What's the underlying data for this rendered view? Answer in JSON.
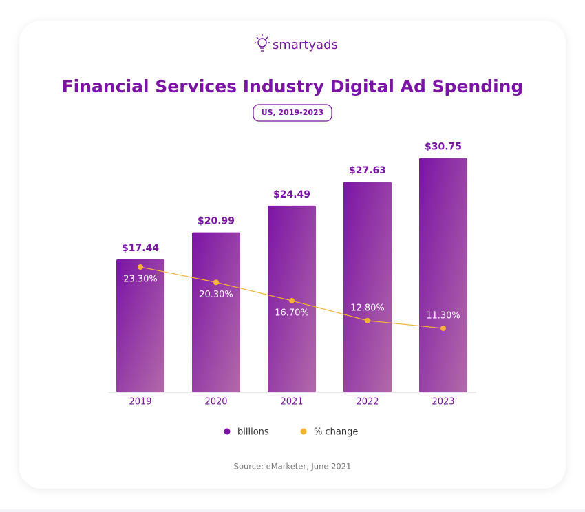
{
  "brand": "smartyads",
  "chart_data": {
    "type": "bar",
    "title": "Financial Services Industry Digital Ad Spending",
    "subtitle": "US, 2019-2023",
    "categories": [
      "2019",
      "2020",
      "2021",
      "2022",
      "2023"
    ],
    "series": [
      {
        "name": "billions",
        "type": "bar",
        "color": "#7b14a5",
        "color_end": "#b26aa9",
        "values": [
          17.44,
          20.99,
          24.49,
          27.63,
          30.75
        ],
        "value_labels": [
          "$17.44",
          "$20.99",
          "$24.49",
          "$27.63",
          "$30.75"
        ]
      },
      {
        "name": "% change",
        "type": "line",
        "color": "#f5b335",
        "values": [
          23.3,
          20.3,
          16.7,
          12.8,
          11.3
        ],
        "value_labels": [
          "23.30%",
          "20.30%",
          "16.70%",
          "12.80%",
          "11.30%"
        ]
      }
    ],
    "source": "Source: eMarketer, June 2021"
  }
}
